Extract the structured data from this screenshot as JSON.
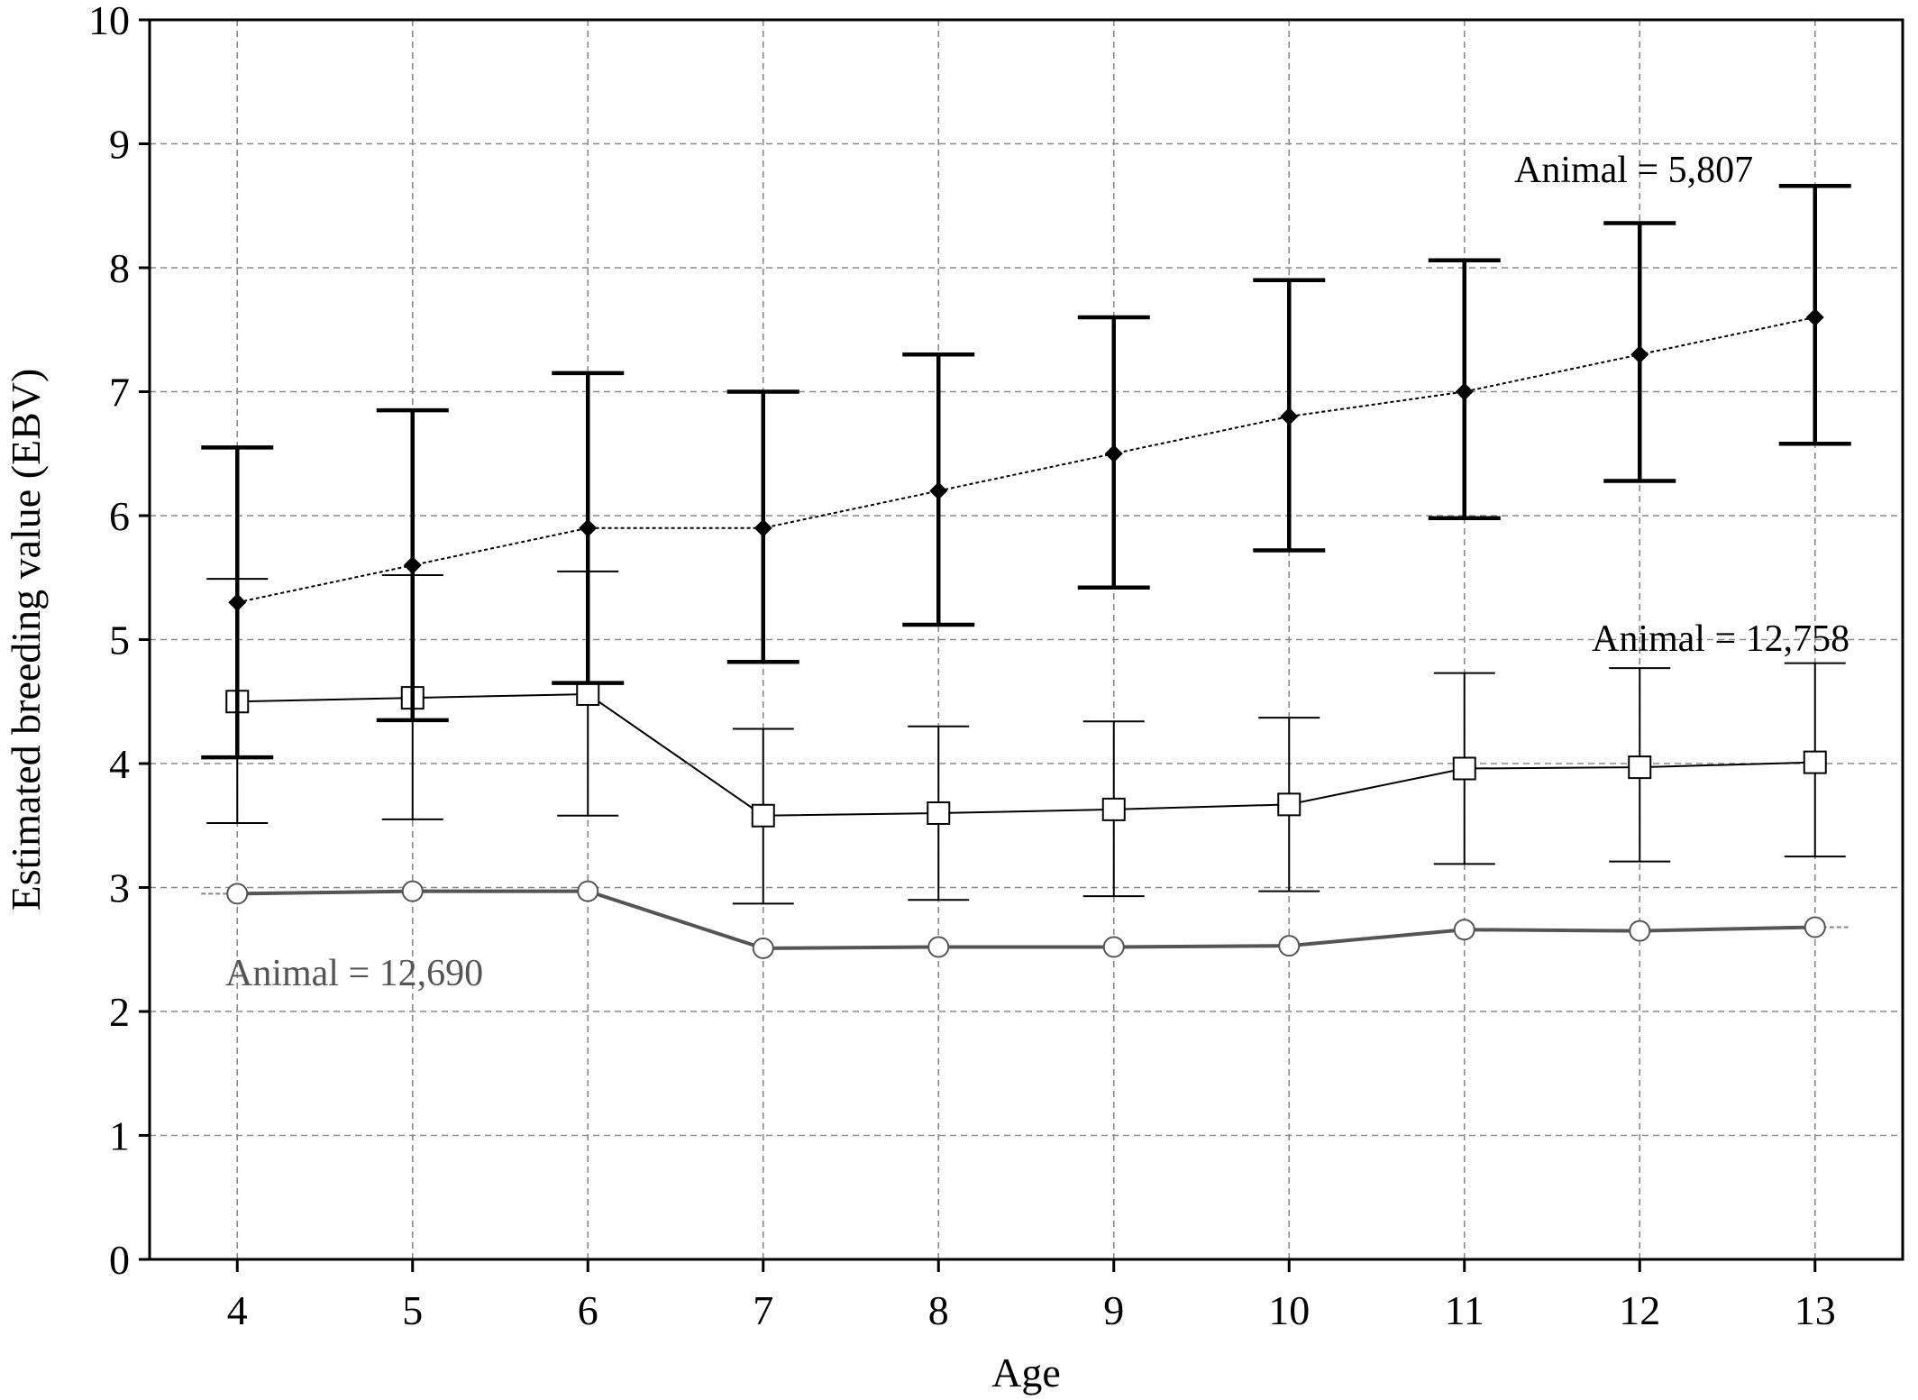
{
  "chart_data": {
    "type": "line",
    "title": "",
    "xlabel": "Age",
    "ylabel": "Estimated breeding value (EBV)",
    "categories": [
      4,
      5,
      6,
      7,
      8,
      9,
      10,
      11,
      12,
      13
    ],
    "x_tick_labels": [
      "4",
      "5",
      "6",
      "7",
      "8",
      "9",
      "10",
      "11",
      "12",
      "13"
    ],
    "y_tick_labels": [
      "0",
      "1",
      "2",
      "3",
      "4",
      "5",
      "6",
      "7",
      "8",
      "9",
      "10"
    ],
    "xlim": [
      3.5,
      13.5
    ],
    "ylim": [
      0,
      10
    ],
    "grid": true,
    "series": [
      {
        "name": "Animal = 5,807",
        "marker": "diamond",
        "line_style": "dotted",
        "color": "#000000",
        "values": [
          5.3,
          5.6,
          5.9,
          5.9,
          6.2,
          6.5,
          6.8,
          7.0,
          7.3,
          7.6
        ],
        "err_low": [
          4.05,
          4.35,
          4.65,
          4.82,
          5.12,
          5.42,
          5.72,
          5.98,
          6.28,
          6.58
        ],
        "err_high": [
          6.55,
          6.85,
          7.15,
          7.0,
          7.3,
          7.6,
          7.9,
          8.06,
          8.36,
          8.66
        ]
      },
      {
        "name": "Animal = 12,758",
        "marker": "square",
        "line_style": "solid",
        "color": "#000000",
        "values": [
          4.5,
          4.53,
          4.56,
          3.58,
          3.6,
          3.63,
          3.67,
          3.96,
          3.97,
          4.01
        ],
        "err_low": [
          3.52,
          3.55,
          3.58,
          2.87,
          2.9,
          2.93,
          2.97,
          3.19,
          3.21,
          3.25
        ],
        "err_high": [
          5.49,
          5.52,
          5.55,
          4.28,
          4.3,
          4.34,
          4.37,
          4.73,
          4.77,
          4.81
        ]
      },
      {
        "name": "Animal = 12,690",
        "marker": "circle",
        "line_style": "solid",
        "color": "#555555",
        "values": [
          2.95,
          2.97,
          2.97,
          2.51,
          2.52,
          2.52,
          2.53,
          2.66,
          2.65,
          2.68
        ]
      }
    ]
  }
}
